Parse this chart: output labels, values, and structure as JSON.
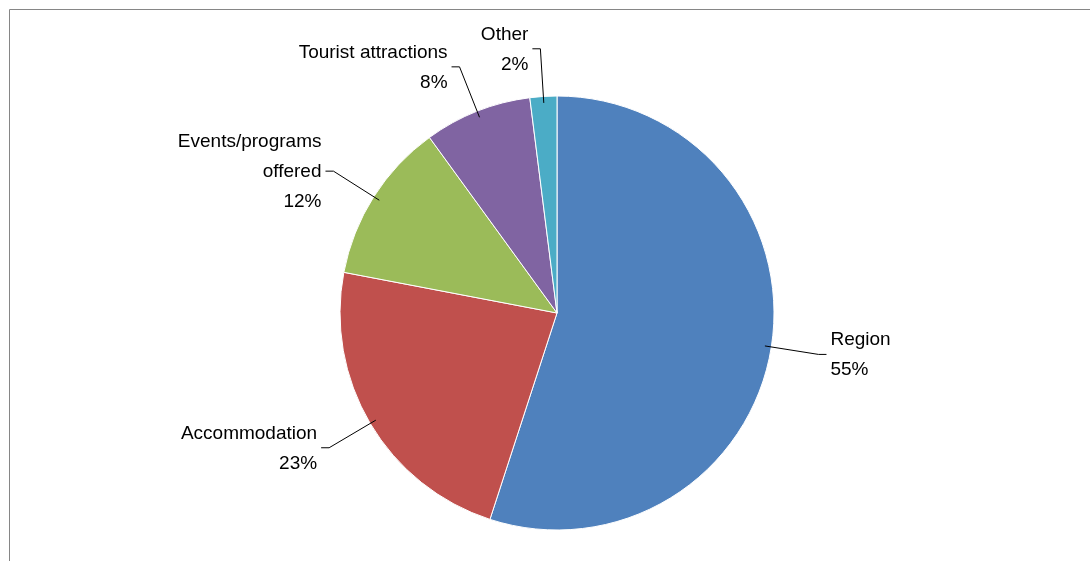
{
  "chart_data": {
    "type": "pie",
    "categories": [
      "Region",
      "Accommodation",
      "Events/programs offered",
      "Tourist attractions",
      "Other"
    ],
    "values": [
      55,
      23,
      12,
      8,
      2
    ],
    "colors": [
      "#4f81bd",
      "#c0504d",
      "#9bbb59",
      "#8064a2",
      "#4bacc6"
    ],
    "value_labels": [
      "55%",
      "23%",
      "12%",
      "8%",
      "2%"
    ]
  }
}
